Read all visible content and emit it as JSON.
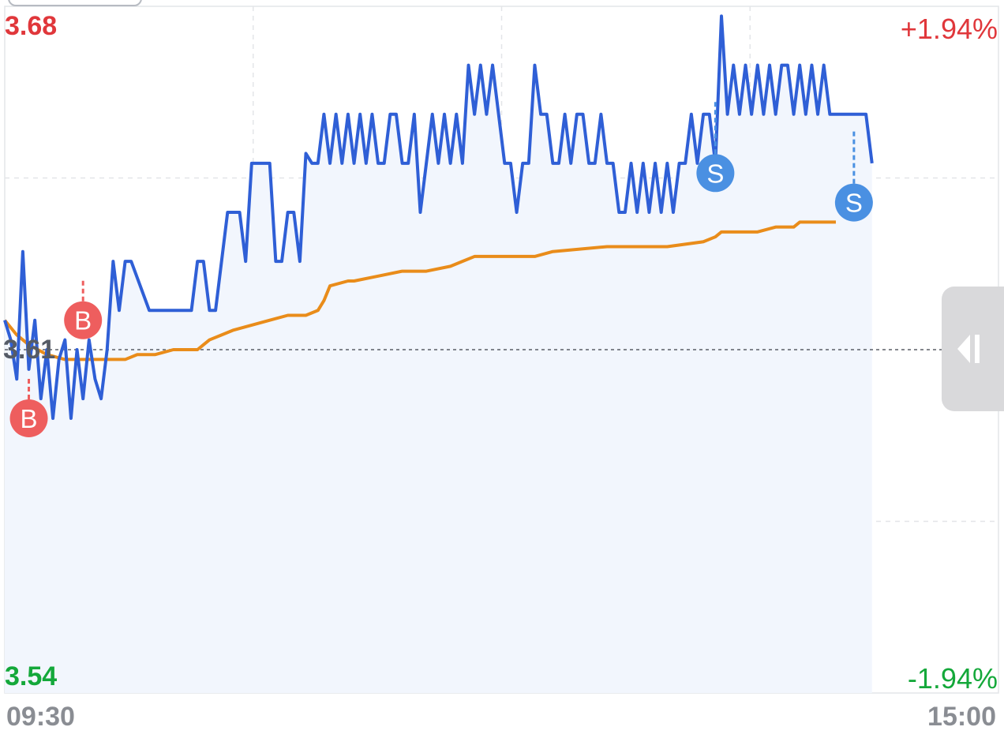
{
  "colors": {
    "price_line": "#2f5fd6",
    "avg_line": "#e98c1a",
    "area_fill": "#f2f6fd",
    "up": "#e0373b",
    "down": "#14a83a",
    "buy_marker": "#ee5e5e",
    "sell_marker": "#4a90e2",
    "grid": "#e3e5e8",
    "ref_line": "#5b5f66"
  },
  "labels": {
    "y_top": "3.68",
    "y_bottom": "3.54",
    "pct_top": "+1.94%",
    "pct_bottom": "-1.94%",
    "ref_price": "3.61",
    "x_start": "09:30",
    "x_end": "15:00"
  },
  "icons": {
    "collapse_handle": "collapse-arrow-icon"
  },
  "chart_data": {
    "type": "line",
    "xlim": [
      "09:30",
      "15:00"
    ],
    "ylim": [
      3.54,
      3.68
    ],
    "ref_price": 3.61,
    "grid": true,
    "price": {
      "points": [
        [
          0,
          3.616
        ],
        [
          2,
          3.612
        ],
        [
          4,
          3.604
        ],
        [
          6,
          3.63
        ],
        [
          8,
          3.606
        ],
        [
          10,
          3.616
        ],
        [
          12,
          3.6
        ],
        [
          14,
          3.61
        ],
        [
          16,
          3.596
        ],
        [
          18,
          3.608
        ],
        [
          20,
          3.612
        ],
        [
          22,
          3.596
        ],
        [
          24,
          3.61
        ],
        [
          26,
          3.6
        ],
        [
          28,
          3.612
        ],
        [
          30,
          3.604
        ],
        [
          32,
          3.6
        ],
        [
          34,
          3.61
        ],
        [
          36,
          3.628
        ],
        [
          38,
          3.618
        ],
        [
          40,
          3.628
        ],
        [
          42,
          3.628
        ],
        [
          48,
          3.618
        ],
        [
          50,
          3.618
        ],
        [
          60,
          3.618
        ],
        [
          62,
          3.618
        ],
        [
          64,
          3.628
        ],
        [
          66,
          3.628
        ],
        [
          68,
          3.618
        ],
        [
          70,
          3.618
        ],
        [
          74,
          3.638
        ],
        [
          78,
          3.638
        ],
        [
          80,
          3.628
        ],
        [
          82,
          3.648
        ],
        [
          88,
          3.648
        ],
        [
          90,
          3.628
        ],
        [
          92,
          3.628
        ],
        [
          94,
          3.638
        ],
        [
          96,
          3.638
        ],
        [
          98,
          3.628
        ],
        [
          100,
          3.65
        ],
        [
          102,
          3.648
        ],
        [
          104,
          3.648
        ],
        [
          106,
          3.658
        ],
        [
          108,
          3.648
        ],
        [
          110,
          3.658
        ],
        [
          112,
          3.648
        ],
        [
          114,
          3.658
        ],
        [
          116,
          3.648
        ],
        [
          118,
          3.658
        ],
        [
          120,
          3.648
        ],
        [
          122,
          3.658
        ],
        [
          124,
          3.648
        ],
        [
          126,
          3.648
        ],
        [
          128,
          3.658
        ],
        [
          130,
          3.658
        ],
        [
          132,
          3.648
        ],
        [
          134,
          3.648
        ],
        [
          136,
          3.658
        ],
        [
          138,
          3.638
        ],
        [
          140,
          3.648
        ],
        [
          142,
          3.658
        ],
        [
          144,
          3.648
        ],
        [
          146,
          3.658
        ],
        [
          148,
          3.648
        ],
        [
          150,
          3.658
        ],
        [
          152,
          3.648
        ],
        [
          154,
          3.668
        ],
        [
          156,
          3.658
        ],
        [
          158,
          3.668
        ],
        [
          160,
          3.658
        ],
        [
          162,
          3.668
        ],
        [
          164,
          3.658
        ],
        [
          166,
          3.648
        ],
        [
          168,
          3.648
        ],
        [
          170,
          3.638
        ],
        [
          172,
          3.648
        ],
        [
          174,
          3.648
        ],
        [
          176,
          3.668
        ],
        [
          178,
          3.658
        ],
        [
          180,
          3.658
        ],
        [
          182,
          3.648
        ],
        [
          184,
          3.648
        ],
        [
          186,
          3.658
        ],
        [
          188,
          3.648
        ],
        [
          190,
          3.658
        ],
        [
          192,
          3.658
        ],
        [
          194,
          3.648
        ],
        [
          196,
          3.648
        ],
        [
          198,
          3.658
        ],
        [
          200,
          3.648
        ],
        [
          202,
          3.648
        ],
        [
          204,
          3.638
        ],
        [
          206,
          3.638
        ],
        [
          208,
          3.648
        ],
        [
          210,
          3.638
        ],
        [
          212,
          3.648
        ],
        [
          214,
          3.638
        ],
        [
          216,
          3.648
        ],
        [
          218,
          3.638
        ],
        [
          220,
          3.648
        ],
        [
          222,
          3.638
        ],
        [
          224,
          3.648
        ],
        [
          226,
          3.648
        ],
        [
          228,
          3.658
        ],
        [
          230,
          3.648
        ],
        [
          232,
          3.658
        ],
        [
          234,
          3.658
        ],
        [
          236,
          3.648
        ],
        [
          238,
          3.678
        ],
        [
          240,
          3.658
        ],
        [
          242,
          3.668
        ],
        [
          244,
          3.658
        ],
        [
          246,
          3.668
        ],
        [
          248,
          3.658
        ],
        [
          250,
          3.668
        ],
        [
          252,
          3.658
        ],
        [
          254,
          3.668
        ],
        [
          256,
          3.658
        ],
        [
          258,
          3.668
        ],
        [
          260,
          3.668
        ],
        [
          262,
          3.658
        ],
        [
          264,
          3.668
        ],
        [
          266,
          3.658
        ],
        [
          268,
          3.668
        ],
        [
          270,
          3.658
        ],
        [
          272,
          3.668
        ],
        [
          274,
          3.658
        ],
        [
          276,
          3.658
        ],
        [
          286,
          3.658
        ],
        [
          288,
          3.648
        ]
      ],
      "x_unit": "minutes since 09:30 (trading minutes)"
    },
    "average": {
      "points": [
        [
          0,
          3.616
        ],
        [
          4,
          3.613
        ],
        [
          8,
          3.611
        ],
        [
          14,
          3.609
        ],
        [
          20,
          3.608
        ],
        [
          40,
          3.608
        ],
        [
          44,
          3.609
        ],
        [
          50,
          3.609
        ],
        [
          56,
          3.61
        ],
        [
          64,
          3.61
        ],
        [
          68,
          3.612
        ],
        [
          72,
          3.613
        ],
        [
          76,
          3.614
        ],
        [
          82,
          3.615
        ],
        [
          88,
          3.616
        ],
        [
          94,
          3.617
        ],
        [
          100,
          3.617
        ],
        [
          104,
          3.618
        ],
        [
          106,
          3.62
        ],
        [
          108,
          3.623
        ],
        [
          114,
          3.624
        ],
        [
          116,
          3.624
        ],
        [
          124,
          3.625
        ],
        [
          132,
          3.626
        ],
        [
          140,
          3.626
        ],
        [
          148,
          3.627
        ],
        [
          152,
          3.628
        ],
        [
          156,
          3.629
        ],
        [
          160,
          3.629
        ],
        [
          176,
          3.629
        ],
        [
          182,
          3.63
        ],
        [
          200,
          3.631
        ],
        [
          220,
          3.631
        ],
        [
          232,
          3.632
        ],
        [
          236,
          3.633
        ],
        [
          238,
          3.634
        ],
        [
          250,
          3.634
        ],
        [
          256,
          3.635
        ],
        [
          262,
          3.635
        ],
        [
          264,
          3.636
        ],
        [
          276,
          3.636
        ]
      ]
    },
    "markers": [
      {
        "type": "B",
        "x": 8,
        "y": 3.596
      },
      {
        "type": "B",
        "x": 26,
        "y": 3.616
      },
      {
        "type": "S",
        "x": 236,
        "y": 3.646
      },
      {
        "type": "S",
        "x": 282,
        "y": 3.64
      }
    ]
  }
}
